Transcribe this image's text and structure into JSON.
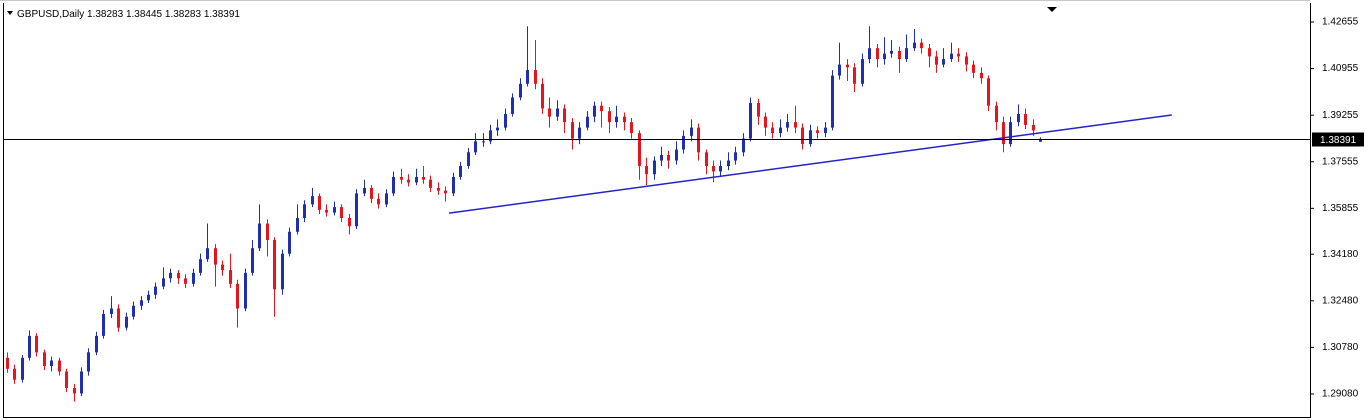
{
  "chart_data": {
    "type": "candlestick",
    "title": "GBPUSD,Daily",
    "colors": {
      "up": "#1f2fb0",
      "down": "#e8141c",
      "trendline": "#2323c8",
      "price_line": "#000000"
    },
    "xlim": [
      -0.5,
      175.3
    ],
    "ylim": [
      1.2824,
      1.43275
    ],
    "yticks": [
      1.42655,
      1.40955,
      1.39255,
      1.37555,
      1.35855,
      {
        "value": 1.3418,
        "label": "1.34180"
      },
      {
        "value": 1.3248,
        "label": "1.32480"
      },
      {
        "value": 1.3078,
        "label": "1.30780"
      },
      {
        "value": 1.2908,
        "label": "1.29080"
      }
    ],
    "trendline": {
      "x": [
        59.5,
        156.7
      ],
      "y": [
        1.3568,
        1.3926
      ]
    },
    "ohlc": [
      [
        1.304,
        1.306,
        1.2985,
        1.3
      ],
      [
        1.3,
        1.3015,
        1.2945,
        1.296
      ],
      [
        1.296,
        1.305,
        1.295,
        1.304
      ],
      [
        1.304,
        1.314,
        1.303,
        1.312
      ],
      [
        1.312,
        1.313,
        1.3045,
        1.306
      ],
      [
        1.306,
        1.307,
        1.2995,
        1.301
      ],
      [
        1.301,
        1.3045,
        1.299,
        1.303
      ],
      [
        1.303,
        1.304,
        1.2975,
        1.299
      ],
      [
        1.299,
        1.3,
        1.2915,
        1.293
      ],
      [
        1.293,
        1.2945,
        1.288,
        1.291
      ],
      [
        1.291,
        1.3005,
        1.29,
        1.299
      ],
      [
        1.299,
        1.3075,
        1.2975,
        1.306
      ],
      [
        1.306,
        1.3135,
        1.305,
        1.312
      ],
      [
        1.312,
        1.3215,
        1.311,
        1.32
      ],
      [
        1.32,
        1.3265,
        1.3185,
        1.322
      ],
      [
        1.322,
        1.3235,
        1.3135,
        1.315
      ],
      [
        1.315,
        1.3205,
        1.314,
        1.319
      ],
      [
        1.319,
        1.3245,
        1.318,
        1.323
      ],
      [
        1.323,
        1.3265,
        1.3215,
        1.325
      ],
      [
        1.325,
        1.3285,
        1.324,
        1.327
      ],
      [
        1.327,
        1.3315,
        1.3255,
        1.33
      ],
      [
        1.33,
        1.337,
        1.329,
        1.333
      ],
      [
        1.333,
        1.3365,
        1.3315,
        1.335
      ],
      [
        1.335,
        1.336,
        1.331,
        1.333
      ],
      [
        1.333,
        1.3345,
        1.3295,
        1.331
      ],
      [
        1.331,
        1.3365,
        1.33,
        1.335
      ],
      [
        1.335,
        1.342,
        1.334,
        1.34
      ],
      [
        1.34,
        1.353,
        1.339,
        1.344
      ],
      [
        1.344,
        1.3455,
        1.33,
        1.338
      ],
      [
        1.338,
        1.3395,
        1.334,
        1.336
      ],
      [
        1.336,
        1.342,
        1.3295,
        1.331
      ],
      [
        1.331,
        1.3325,
        1.315,
        1.322
      ],
      [
        1.322,
        1.3365,
        1.321,
        1.335
      ],
      [
        1.335,
        1.347,
        1.334,
        1.344
      ],
      [
        1.344,
        1.36,
        1.343,
        1.353
      ],
      [
        1.353,
        1.3545,
        1.341,
        1.347
      ],
      [
        1.347,
        1.348,
        1.319,
        1.329
      ],
      [
        1.329,
        1.3435,
        1.327,
        1.342
      ],
      [
        1.342,
        1.3515,
        1.341,
        1.35
      ],
      [
        1.35,
        1.36,
        1.349,
        1.355
      ],
      [
        1.355,
        1.3615,
        1.3535,
        1.36
      ],
      [
        1.36,
        1.366,
        1.359,
        1.363
      ],
      [
        1.363,
        1.364,
        1.3565,
        1.358
      ],
      [
        1.358,
        1.36,
        1.3555,
        1.357
      ],
      [
        1.357,
        1.361,
        1.356,
        1.359
      ],
      [
        1.359,
        1.36,
        1.3535,
        1.355
      ],
      [
        1.355,
        1.3565,
        1.349,
        1.352
      ],
      [
        1.352,
        1.3655,
        1.351,
        1.364
      ],
      [
        1.364,
        1.369,
        1.363,
        1.366
      ],
      [
        1.366,
        1.367,
        1.3605,
        1.362
      ],
      [
        1.362,
        1.364,
        1.3585,
        1.36
      ],
      [
        1.36,
        1.3655,
        1.359,
        1.364
      ],
      [
        1.364,
        1.372,
        1.363,
        1.37
      ],
      [
        1.37,
        1.373,
        1.3675,
        1.369
      ],
      [
        1.369,
        1.371,
        1.3665,
        1.368
      ],
      [
        1.368,
        1.373,
        1.367,
        1.37
      ],
      [
        1.37,
        1.374,
        1.3675,
        1.369
      ],
      [
        1.369,
        1.3705,
        1.3645,
        1.366
      ],
      [
        1.366,
        1.368,
        1.3635,
        1.365
      ],
      [
        1.365,
        1.3665,
        1.361,
        1.364
      ],
      [
        1.364,
        1.3715,
        1.363,
        1.37
      ],
      [
        1.37,
        1.3755,
        1.369,
        1.374
      ],
      [
        1.374,
        1.3805,
        1.373,
        1.379
      ],
      [
        1.379,
        1.386,
        1.378,
        1.383
      ],
      [
        1.383,
        1.386,
        1.381,
        1.383
      ],
      [
        1.383,
        1.389,
        1.382,
        1.387
      ],
      [
        1.387,
        1.391,
        1.385,
        1.388
      ],
      [
        1.388,
        1.395,
        1.387,
        1.393
      ],
      [
        1.393,
        1.4005,
        1.392,
        1.399
      ],
      [
        1.399,
        1.406,
        1.398,
        1.404
      ],
      [
        1.404,
        1.425,
        1.403,
        1.409
      ],
      [
        1.409,
        1.42,
        1.402,
        1.404
      ],
      [
        1.404,
        1.406,
        1.393,
        1.395
      ],
      [
        1.395,
        1.399,
        1.388,
        1.392
      ],
      [
        1.392,
        1.398,
        1.3905,
        1.395
      ],
      [
        1.395,
        1.3965,
        1.386,
        1.39
      ],
      [
        1.39,
        1.3915,
        1.38,
        1.384
      ],
      [
        1.384,
        1.39,
        1.382,
        1.388
      ],
      [
        1.388,
        1.394,
        1.387,
        1.392
      ],
      [
        1.392,
        1.3975,
        1.39,
        1.396
      ],
      [
        1.396,
        1.3975,
        1.388,
        1.394
      ],
      [
        1.394,
        1.3955,
        1.386,
        1.39
      ],
      [
        1.39,
        1.396,
        1.388,
        1.392
      ],
      [
        1.392,
        1.3935,
        1.387,
        1.39
      ],
      [
        1.39,
        1.3915,
        1.384,
        1.386
      ],
      [
        1.386,
        1.387,
        1.369,
        1.374
      ],
      [
        1.374,
        1.377,
        1.367,
        1.371
      ],
      [
        1.371,
        1.3775,
        1.369,
        1.376
      ],
      [
        1.376,
        1.381,
        1.374,
        1.378
      ],
      [
        1.378,
        1.3795,
        1.373,
        1.376
      ],
      [
        1.376,
        1.383,
        1.3745,
        1.38
      ],
      [
        1.38,
        1.387,
        1.3785,
        1.385
      ],
      [
        1.385,
        1.391,
        1.383,
        1.388
      ],
      [
        1.388,
        1.3895,
        1.376,
        1.379
      ],
      [
        1.379,
        1.38,
        1.371,
        1.374
      ],
      [
        1.374,
        1.376,
        1.368,
        1.372
      ],
      [
        1.372,
        1.376,
        1.37,
        1.374
      ],
      [
        1.374,
        1.379,
        1.3725,
        1.376
      ],
      [
        1.376,
        1.381,
        1.3745,
        1.379
      ],
      [
        1.379,
        1.386,
        1.3775,
        1.384
      ],
      [
        1.384,
        1.399,
        1.383,
        1.397
      ],
      [
        1.397,
        1.3985,
        1.389,
        1.392
      ],
      [
        1.392,
        1.3935,
        1.385,
        1.388
      ],
      [
        1.388,
        1.39,
        1.384,
        1.386
      ],
      [
        1.386,
        1.391,
        1.3845,
        1.388
      ],
      [
        1.388,
        1.393,
        1.3865,
        1.39
      ],
      [
        1.39,
        1.396,
        1.386,
        1.388
      ],
      [
        1.388,
        1.3895,
        1.38,
        1.382
      ],
      [
        1.382,
        1.389,
        1.381,
        1.387
      ],
      [
        1.387,
        1.3885,
        1.384,
        1.386
      ],
      [
        1.386,
        1.39,
        1.3845,
        1.388
      ],
      [
        1.388,
        1.409,
        1.387,
        1.407
      ],
      [
        1.407,
        1.419,
        1.4055,
        1.411
      ],
      [
        1.411,
        1.413,
        1.405,
        1.41
      ],
      [
        1.41,
        1.4115,
        1.401,
        1.404
      ],
      [
        1.404,
        1.415,
        1.403,
        1.413
      ],
      [
        1.413,
        1.425,
        1.4115,
        1.417
      ],
      [
        1.417,
        1.4185,
        1.41,
        1.413
      ],
      [
        1.413,
        1.421,
        1.411,
        1.415
      ],
      [
        1.415,
        1.42,
        1.4135,
        1.416
      ],
      [
        1.416,
        1.4175,
        1.408,
        1.413
      ],
      [
        1.413,
        1.422,
        1.412,
        1.417
      ],
      [
        1.417,
        1.424,
        1.416,
        1.419
      ],
      [
        1.419,
        1.4205,
        1.415,
        1.417
      ],
      [
        1.417,
        1.4185,
        1.41,
        1.414
      ],
      [
        1.414,
        1.416,
        1.408,
        1.411
      ],
      [
        1.411,
        1.417,
        1.41,
        1.413
      ],
      [
        1.413,
        1.419,
        1.412,
        1.415
      ],
      [
        1.415,
        1.417,
        1.412,
        1.414
      ],
      [
        1.414,
        1.4155,
        1.4085,
        1.411
      ],
      [
        1.411,
        1.4125,
        1.406,
        1.408
      ],
      [
        1.408,
        1.41,
        1.404,
        1.406
      ],
      [
        1.406,
        1.407,
        1.394,
        1.396
      ],
      [
        1.396,
        1.3975,
        1.387,
        1.39
      ],
      [
        1.39,
        1.392,
        1.379,
        1.382
      ],
      [
        1.382,
        1.392,
        1.381,
        1.39
      ],
      [
        1.39,
        1.3965,
        1.3885,
        1.393
      ],
      [
        1.393,
        1.395,
        1.3875,
        1.389
      ],
      [
        1.389,
        1.391,
        1.385,
        1.387
      ],
      [
        1.38283,
        1.38445,
        1.38283,
        1.38391
      ]
    ]
  }
}
